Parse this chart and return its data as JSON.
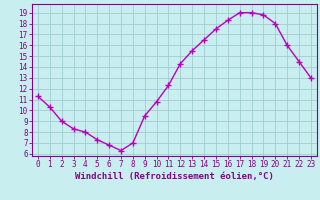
{
  "x": [
    0,
    1,
    2,
    3,
    4,
    5,
    6,
    7,
    8,
    9,
    10,
    11,
    12,
    13,
    14,
    15,
    16,
    17,
    18,
    19,
    20,
    21,
    22,
    23
  ],
  "y": [
    11.3,
    10.3,
    9.0,
    8.3,
    8.0,
    7.3,
    6.8,
    6.3,
    7.0,
    9.5,
    10.8,
    12.3,
    14.3,
    15.5,
    16.5,
    17.5,
    18.3,
    19.0,
    19.0,
    18.8,
    18.0,
    16.0,
    14.5,
    13.0
  ],
  "line_color": "#bb00bb",
  "marker": "+",
  "bg_color": "#c8eef0",
  "grid_color": "#a0ccd0",
  "axis_color": "#880088",
  "xlabel": "Windchill (Refroidissement éolien,°C)",
  "ylim": [
    5.8,
    19.8
  ],
  "xlim": [
    -0.5,
    23.5
  ],
  "yticks": [
    6,
    7,
    8,
    9,
    10,
    11,
    12,
    13,
    14,
    15,
    16,
    17,
    18,
    19
  ],
  "xticks": [
    0,
    1,
    2,
    3,
    4,
    5,
    6,
    7,
    8,
    9,
    10,
    11,
    12,
    13,
    14,
    15,
    16,
    17,
    18,
    19,
    20,
    21,
    22,
    23
  ],
  "tick_fontsize": 5.5,
  "xlabel_fontsize": 6.5,
  "linewidth": 1.0,
  "markersize": 4
}
